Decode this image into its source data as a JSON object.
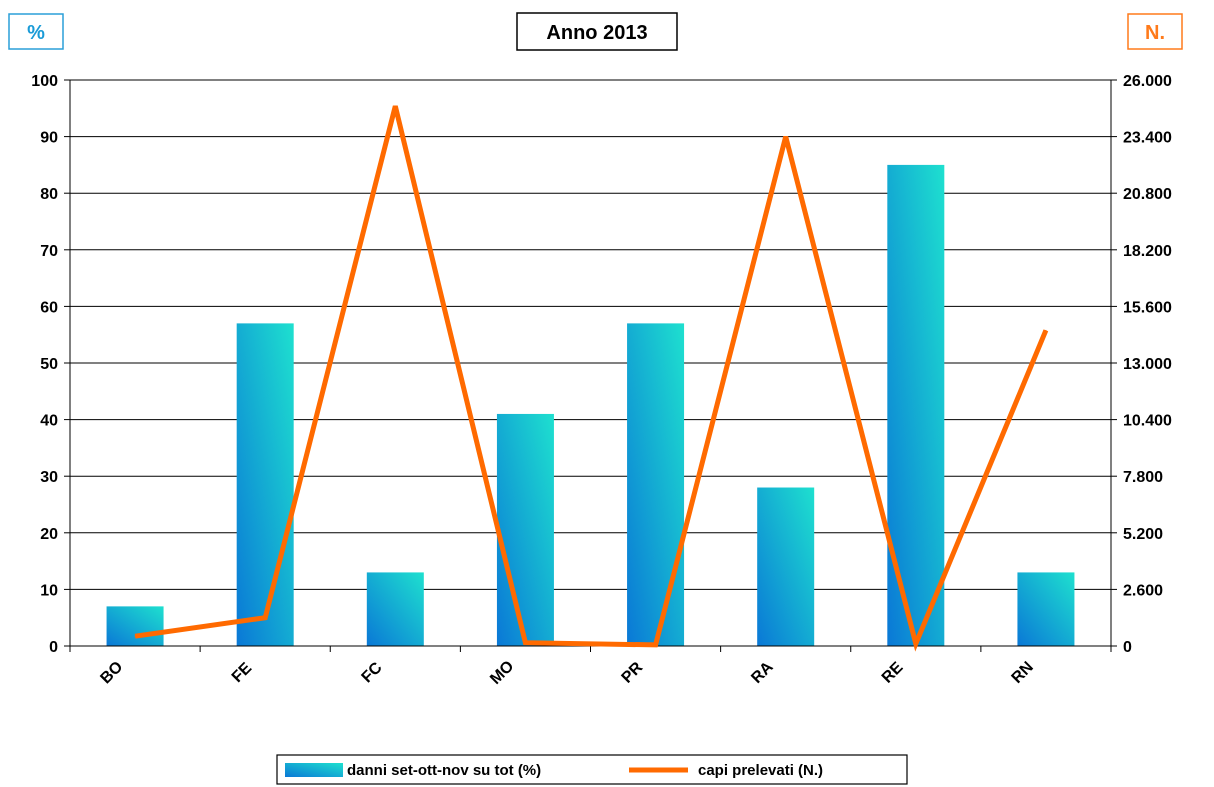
{
  "chart_data": {
    "type": "bar",
    "title": "Anno 2013",
    "y_left_label": "%",
    "y_right_label": "N.",
    "categories": [
      "BO",
      "FE",
      "FC",
      "MO",
      "PR",
      "RA",
      "RE",
      "RN"
    ],
    "series": [
      {
        "name": "danni set-ott-nov su tot (%)",
        "kind": "bar",
        "axis": "left",
        "values": [
          7,
          57,
          13,
          41,
          57,
          28,
          85,
          13
        ]
      },
      {
        "name": "capi prelevati (N.)",
        "kind": "line",
        "axis": "right",
        "values": [
          450,
          1300,
          24800,
          150,
          50,
          23400,
          100,
          14500
        ]
      }
    ],
    "y_left": {
      "min": 0,
      "max": 100,
      "ticks": [
        "0",
        "10",
        "20",
        "30",
        "40",
        "50",
        "60",
        "70",
        "80",
        "90",
        "100"
      ]
    },
    "y_right": {
      "min": 0,
      "max": 26000,
      "ticks": [
        "0",
        "2.600",
        "5.200",
        "7.800",
        "10.400",
        "13.000",
        "15.600",
        "18.200",
        "20.800",
        "23.400",
        "26.000"
      ]
    },
    "grid": true,
    "legend_position": "bottom",
    "colors": {
      "bar_dark": "#0a78d6",
      "bar_light": "#1ee0cf",
      "line": "#ff6a00",
      "left_axis_label": "#1a9bd7",
      "right_axis_label": "#ff7a1a"
    }
  }
}
